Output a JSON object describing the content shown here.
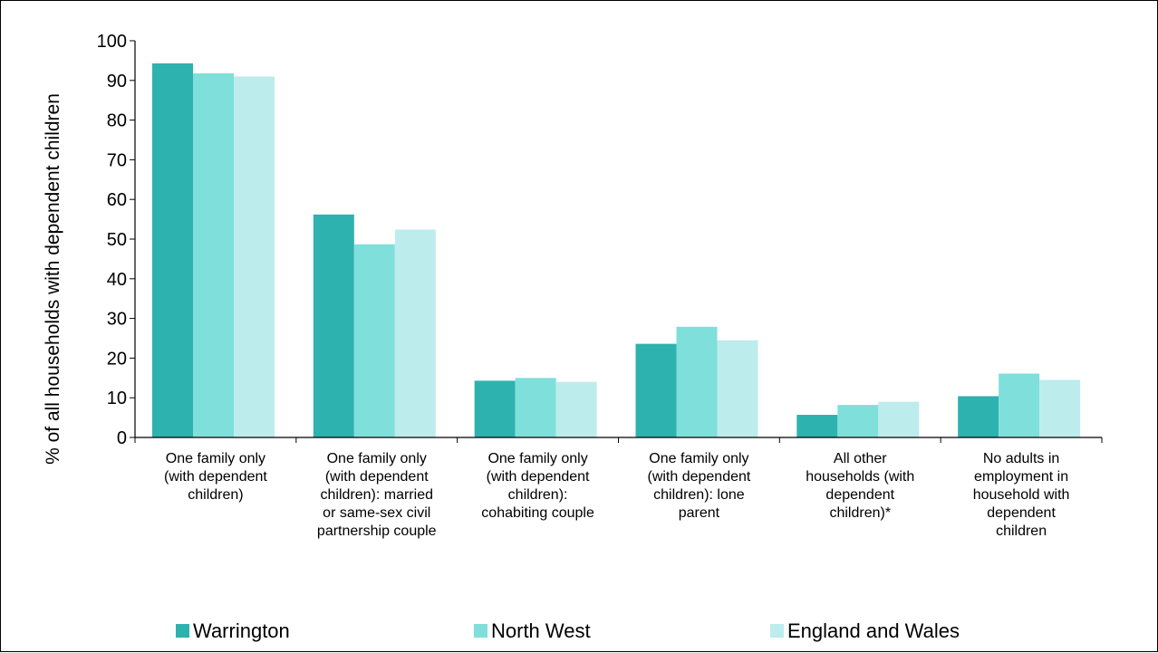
{
  "chart_data": {
    "type": "bar",
    "title": "",
    "xlabel": "",
    "ylabel": "% of all households with dependent children",
    "ylim": [
      0,
      100
    ],
    "yticks": [
      0,
      10,
      20,
      30,
      40,
      50,
      60,
      70,
      80,
      90,
      100
    ],
    "grid": false,
    "legend_position": "bottom",
    "categories": [
      [
        "One family only",
        "(with dependent",
        "children)"
      ],
      [
        "One family only",
        "(with dependent",
        "children): married",
        "or same-sex civil",
        "partnership couple"
      ],
      [
        "One family only",
        "(with dependent",
        "children):",
        "cohabiting couple"
      ],
      [
        "One family only",
        "(with dependent",
        "children): lone",
        "parent"
      ],
      [
        "All other",
        "households (with",
        "dependent",
        "children)*"
      ],
      [
        "No adults in",
        "employment in",
        "household with",
        "dependent",
        "children"
      ]
    ],
    "series": [
      {
        "name": "Warrington",
        "color": "#2eb2af",
        "values": [
          94.3,
          56.2,
          14.3,
          23.6,
          5.7,
          10.4
        ]
      },
      {
        "name": "North West",
        "color": "#7fdfdb",
        "values": [
          91.8,
          48.7,
          15.0,
          27.9,
          8.2,
          16.1
        ]
      },
      {
        "name": "England and Wales",
        "color": "#bdecec",
        "values": [
          91.0,
          52.4,
          14.0,
          24.5,
          9.0,
          14.5
        ]
      }
    ]
  }
}
